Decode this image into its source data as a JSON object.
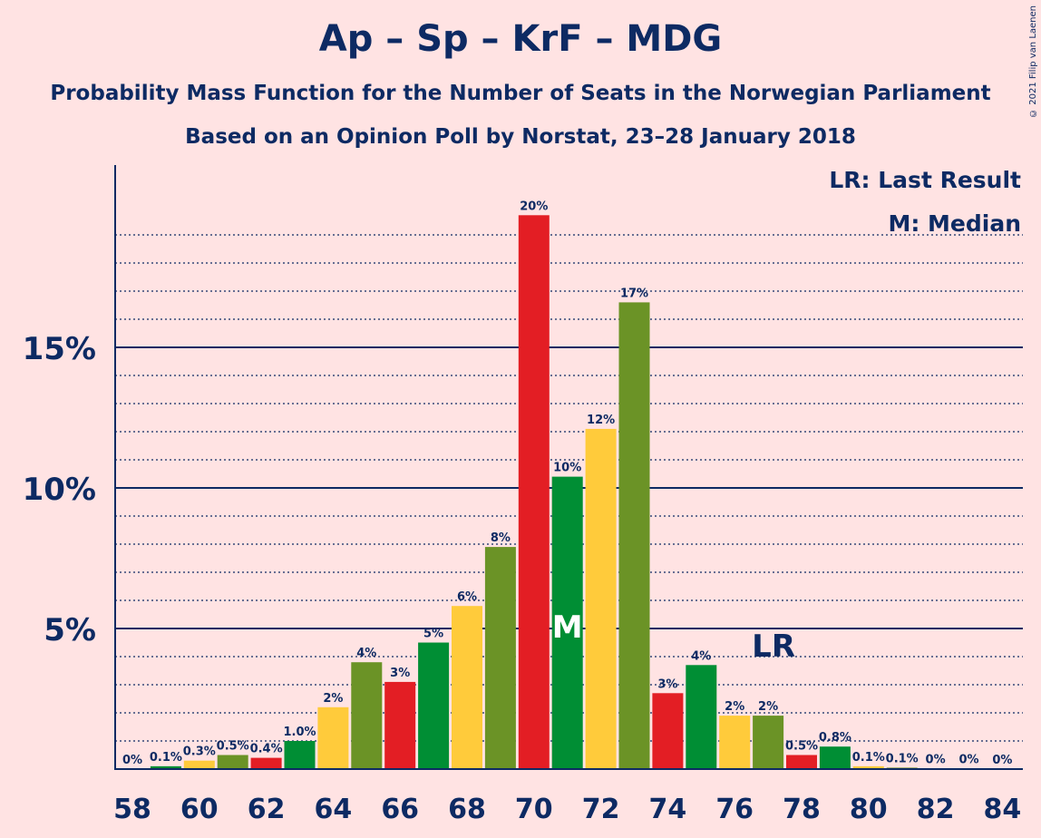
{
  "title": "Ap – Sp – KrF – MDG",
  "subtitle": "Probability Mass Function for the Number of Seats in the Norwegian Parliament",
  "subtitle2": "Based on an Opinion Poll by Norstat, 23–28 January 2018",
  "copyright": "© 2021 Filip van Laenen",
  "legend": {
    "lr": "LR: Last Result",
    "m": "M: Median"
  },
  "colors": {
    "background": "#FFE3E3",
    "text": "#0D2A63",
    "series": [
      "#E31E24",
      "#008E34",
      "#FFCB3B",
      "#6B9326"
    ]
  },
  "chart_data": {
    "type": "bar",
    "title": "Ap – Sp – KrF – MDG",
    "xlabel": "",
    "ylabel": "",
    "ylim": [
      0,
      21.5
    ],
    "ytick_labels": [
      "5%",
      "10%",
      "15%"
    ],
    "ytick_values": [
      5,
      10,
      15
    ],
    "xtick_labels": [
      "58",
      "60",
      "62",
      "64",
      "66",
      "68",
      "70",
      "72",
      "74",
      "76",
      "78",
      "80",
      "82",
      "84"
    ],
    "categories": [
      58,
      59,
      60,
      61,
      62,
      63,
      64,
      65,
      66,
      67,
      68,
      69,
      70,
      71,
      72,
      73,
      74,
      75,
      76,
      77,
      78,
      79,
      80,
      81,
      82,
      83,
      84
    ],
    "values": [
      0,
      0.1,
      0.3,
      0.5,
      0.4,
      1.0,
      2.2,
      3.8,
      3.1,
      4.5,
      5.8,
      7.9,
      19.7,
      10.4,
      12.1,
      16.6,
      2.7,
      3.7,
      1.9,
      1.9,
      0.5,
      0.8,
      0.1,
      0.05,
      0.02,
      0.01,
      0.0
    ],
    "labels": [
      "0%",
      "0.1%",
      "0.3%",
      "0.5%",
      "0.4%",
      "1.0%",
      "2%",
      "4%",
      "3%",
      "5%",
      "6%",
      "8%",
      "20%",
      "10%",
      "12%",
      "17%",
      "3%",
      "4%",
      "2%",
      "2%",
      "0.5%",
      "0.8%",
      "0.1%",
      "0.1%",
      "0%",
      "0%",
      "0%"
    ],
    "median_seat": 71,
    "median_label": "M",
    "last_result_seat": 77,
    "last_result_label": "LR",
    "grid": true
  }
}
